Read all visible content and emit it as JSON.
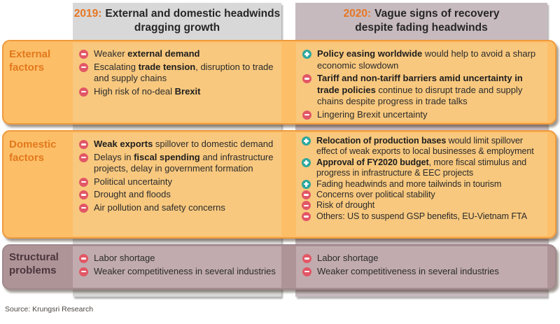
{
  "headers": {
    "col2019": {
      "year": "2019:",
      "line1": "External and domestic headwinds",
      "line2": "dragging growth"
    },
    "col2020": {
      "year": "2020:",
      "line1": "Vague signs of recovery",
      "line2": "despite fading headwinds"
    }
  },
  "rows": [
    {
      "id": "external",
      "label": "External factors",
      "col2019": [
        {
          "sign": "minus",
          "parts": [
            {
              "t": "Weaker ",
              "b": false
            },
            {
              "t": "external demand",
              "b": true
            }
          ]
        },
        {
          "sign": "minus",
          "parts": [
            {
              "t": "Escalating ",
              "b": false
            },
            {
              "t": "trade tension",
              "b": true
            },
            {
              "t": ", disruption to trade and supply chains",
              "b": false
            }
          ]
        },
        {
          "sign": "minus",
          "parts": [
            {
              "t": "High risk of no-deal ",
              "b": false
            },
            {
              "t": "Brexit",
              "b": true
            }
          ]
        }
      ],
      "col2020": [
        {
          "sign": "plus",
          "parts": [
            {
              "t": "Policy easing worldwide",
              "b": true
            },
            {
              "t": " would help to avoid a sharp economic slowdown",
              "b": false
            }
          ]
        },
        {
          "sign": "minus",
          "parts": [
            {
              "t": "Tariff and non-tariff barriers amid uncertainty in trade policies",
              "b": true
            },
            {
              "t": " continue to disrupt trade and supply chains despite progress in trade talks",
              "b": false
            }
          ]
        },
        {
          "sign": "minus",
          "parts": [
            {
              "t": "Lingering Brexit uncertainty",
              "b": false
            }
          ]
        }
      ]
    },
    {
      "id": "domestic",
      "label": "Domestic factors",
      "col2019": [
        {
          "sign": "minus",
          "parts": [
            {
              "t": "Weak exports",
              "b": true
            },
            {
              "t": " spillover to domestic demand",
              "b": false
            }
          ]
        },
        {
          "sign": "minus",
          "parts": [
            {
              "t": "Delays in ",
              "b": false
            },
            {
              "t": "fiscal spending",
              "b": true
            },
            {
              "t": " and infrastructure projects, delay in government formation",
              "b": false
            }
          ]
        },
        {
          "sign": "minus",
          "parts": [
            {
              "t": "Political uncertainty",
              "b": false
            }
          ]
        },
        {
          "sign": "minus",
          "parts": [
            {
              "t": "Drought and floods",
              "b": false
            }
          ]
        },
        {
          "sign": "minus",
          "parts": [
            {
              "t": "Air pollution and safety concerns",
              "b": false
            }
          ]
        }
      ],
      "col2020": [
        {
          "sign": "plus",
          "parts": [
            {
              "t": "Relocation of production bases",
              "b": true
            },
            {
              "t": " would limit spillover effect of weak exports to local businesses & employment",
              "b": false
            }
          ]
        },
        {
          "sign": "plus",
          "parts": [
            {
              "t": "Approval of FY2020 budget",
              "b": true
            },
            {
              "t": ", more fiscal stimulus and progress in infrastructure & EEC projects",
              "b": false
            }
          ]
        },
        {
          "sign": "plus",
          "parts": [
            {
              "t": "Fading headwinds and more tailwinds in tourism",
              "b": false
            }
          ]
        },
        {
          "sign": "minus",
          "parts": [
            {
              "t": "Concerns over political stability",
              "b": false
            }
          ]
        },
        {
          "sign": "minus",
          "parts": [
            {
              "t": "Risk of drought",
              "b": false
            }
          ]
        },
        {
          "sign": "minus",
          "parts": [
            {
              "t": "Others: US to suspend GSP benefits, EU-Vietnam FTA",
              "b": false
            }
          ]
        }
      ]
    },
    {
      "id": "structural",
      "label": "Structural problems",
      "col2019": [
        {
          "sign": "minus",
          "parts": [
            {
              "t": "Labor shortage",
              "b": false
            }
          ]
        },
        {
          "sign": "minus",
          "parts": [
            {
              "t": "Weaker competitiveness in several industries",
              "b": false
            }
          ]
        }
      ],
      "col2020": [
        {
          "sign": "minus",
          "parts": [
            {
              "t": "Labor shortage",
              "b": false
            }
          ]
        },
        {
          "sign": "minus",
          "parts": [
            {
              "t": "Weaker competitiveness in several industries",
              "b": false
            }
          ]
        }
      ]
    }
  ],
  "footer": {
    "source": "Source: Krungsri Research"
  },
  "colors": {
    "accent_orange": "#E87722",
    "header_panel_2019": "#D8D8D8",
    "header_panel_2020": "#C7BABF",
    "row_fill_orange": "#FDBE68",
    "row_border_orange": "#EF9A3C",
    "cell_fill_orange": "#F8C87E",
    "row_fill_mauve": "#AE9397",
    "cell_fill_mauve": "#C1ABAE",
    "structural_label_text": "#4A363D",
    "minus_icon": "#E25766",
    "plus_icon": "#2EA79C",
    "body_text": "#2B2B2B"
  }
}
